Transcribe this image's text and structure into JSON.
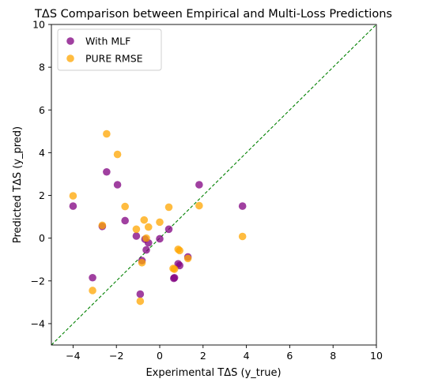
{
  "chart_data": {
    "type": "scatter",
    "title": "TΔS Comparison between Empirical and Multi-Loss Predictions",
    "xlabel": "Experimental TΔS (y_true)",
    "ylabel": "Predicted TΔS (y_pred)",
    "xlim": [
      -5,
      10
    ],
    "ylim": [
      -5,
      10
    ],
    "xticks": [
      -4,
      -2,
      0,
      2,
      4,
      6,
      8,
      10
    ],
    "yticks": [
      -4,
      -2,
      0,
      2,
      4,
      6,
      8,
      10
    ],
    "grid": false,
    "legend": "top-left",
    "reference_line": {
      "type": "y=x",
      "style": "dashed",
      "color": "#008000"
    },
    "series": [
      {
        "name": "With MLF",
        "color": "#800080",
        "points": [
          [
            -4.0,
            1.5
          ],
          [
            -3.1,
            -1.85
          ],
          [
            -2.65,
            0.55
          ],
          [
            -2.45,
            3.1
          ],
          [
            -1.95,
            2.5
          ],
          [
            -1.6,
            0.82
          ],
          [
            -1.08,
            0.1
          ],
          [
            -0.9,
            -2.62
          ],
          [
            -0.82,
            -1.05
          ],
          [
            -0.68,
            -0.05
          ],
          [
            -0.62,
            -0.55
          ],
          [
            -0.52,
            -0.22
          ],
          [
            0.0,
            -0.03
          ],
          [
            0.42,
            0.42
          ],
          [
            0.65,
            -1.88
          ],
          [
            0.68,
            -1.85
          ],
          [
            0.85,
            -1.2
          ],
          [
            0.92,
            -1.28
          ],
          [
            1.3,
            -0.88
          ],
          [
            1.82,
            2.5
          ],
          [
            3.82,
            1.5
          ]
        ]
      },
      {
        "name": "PURE RMSE",
        "color": "#FFA500",
        "points": [
          [
            -4.0,
            1.98
          ],
          [
            -3.1,
            -2.45
          ],
          [
            -2.65,
            0.6
          ],
          [
            -2.45,
            4.88
          ],
          [
            -1.95,
            3.92
          ],
          [
            -1.6,
            1.48
          ],
          [
            -1.08,
            0.42
          ],
          [
            -0.9,
            -2.95
          ],
          [
            -0.82,
            -1.15
          ],
          [
            -0.72,
            0.85
          ],
          [
            -0.62,
            0.0
          ],
          [
            -0.52,
            0.52
          ],
          [
            0.0,
            0.75
          ],
          [
            0.42,
            1.45
          ],
          [
            0.62,
            -1.42
          ],
          [
            0.68,
            -1.45
          ],
          [
            0.85,
            -0.52
          ],
          [
            0.92,
            -0.58
          ],
          [
            1.3,
            -0.95
          ],
          [
            1.82,
            1.52
          ],
          [
            3.82,
            0.08
          ]
        ]
      }
    ]
  }
}
